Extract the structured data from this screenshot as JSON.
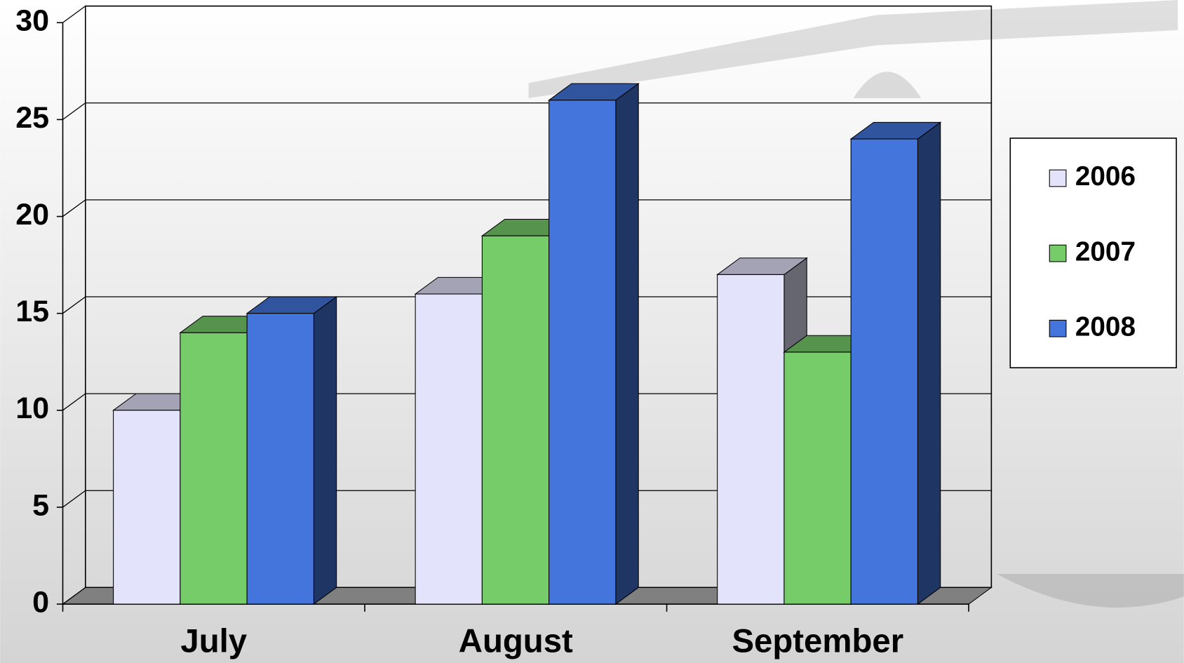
{
  "chart_data": {
    "type": "bar3d",
    "categories": [
      "July",
      "August",
      "September"
    ],
    "series": [
      {
        "name": "2006",
        "color": "#e3e3fb",
        "values": [
          10,
          16,
          17
        ]
      },
      {
        "name": "2007",
        "color": "#77cc6a",
        "values": [
          14,
          19,
          13
        ]
      },
      {
        "name": "2008",
        "color": "#4475dd",
        "values": [
          15,
          26,
          24
        ]
      }
    ],
    "ylim": [
      0,
      30
    ],
    "yticks": [
      0,
      5,
      10,
      15,
      20,
      25,
      30
    ],
    "grid": true,
    "legend": "right"
  }
}
